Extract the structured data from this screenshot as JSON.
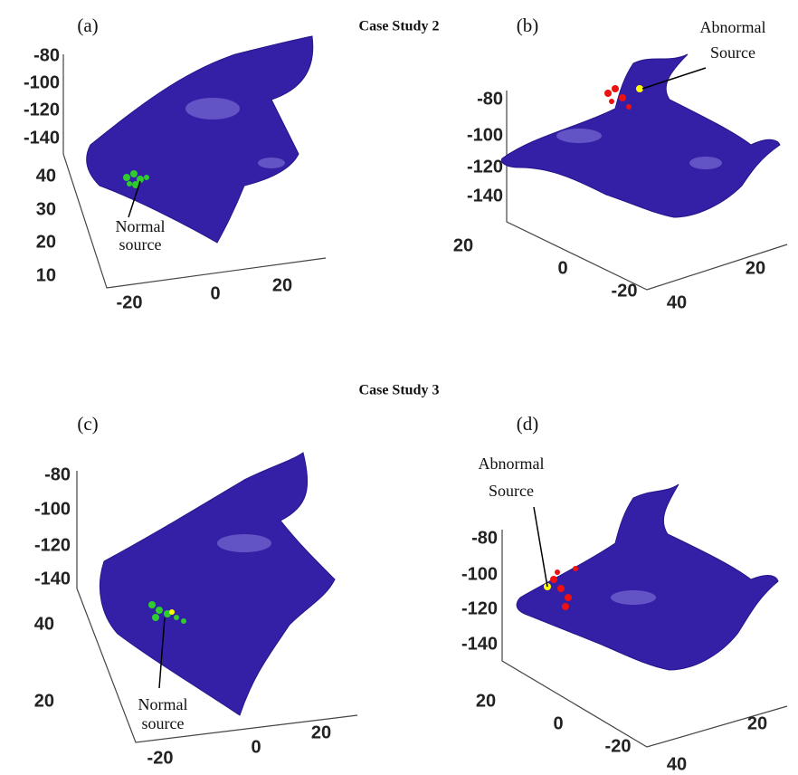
{
  "titles": [
    "Case Study 2",
    "Case Study 3"
  ],
  "panels": [
    {
      "label": "(a)",
      "annotation": [
        "Normal",
        "source"
      ],
      "z_ticks": [
        -80,
        -100,
        -120,
        -140
      ],
      "y_ticks": [
        40,
        30,
        20,
        10
      ],
      "x_ticks": [
        -20,
        0,
        20
      ]
    },
    {
      "label": "(b)",
      "annotation": [
        "Abnormal",
        "Source"
      ],
      "z_ticks": [
        -80,
        -100,
        -120,
        -140
      ],
      "y_ticks": [
        20,
        0,
        -20
      ],
      "x_ticks": [
        20,
        40
      ]
    },
    {
      "label": "(c)",
      "annotation": [
        "Normal",
        "source"
      ],
      "z_ticks": [
        -80,
        -100,
        -120,
        -140
      ],
      "y_ticks": [
        40,
        20
      ],
      "x_ticks": [
        -20,
        0,
        20
      ]
    },
    {
      "label": "(d)",
      "annotation": [
        "Abnormal",
        "Source"
      ],
      "z_ticks": [
        -80,
        -100,
        -120,
        -140
      ],
      "y_ticks": [
        20,
        0,
        -20
      ],
      "x_ticks": [
        20,
        40
      ]
    }
  ]
}
